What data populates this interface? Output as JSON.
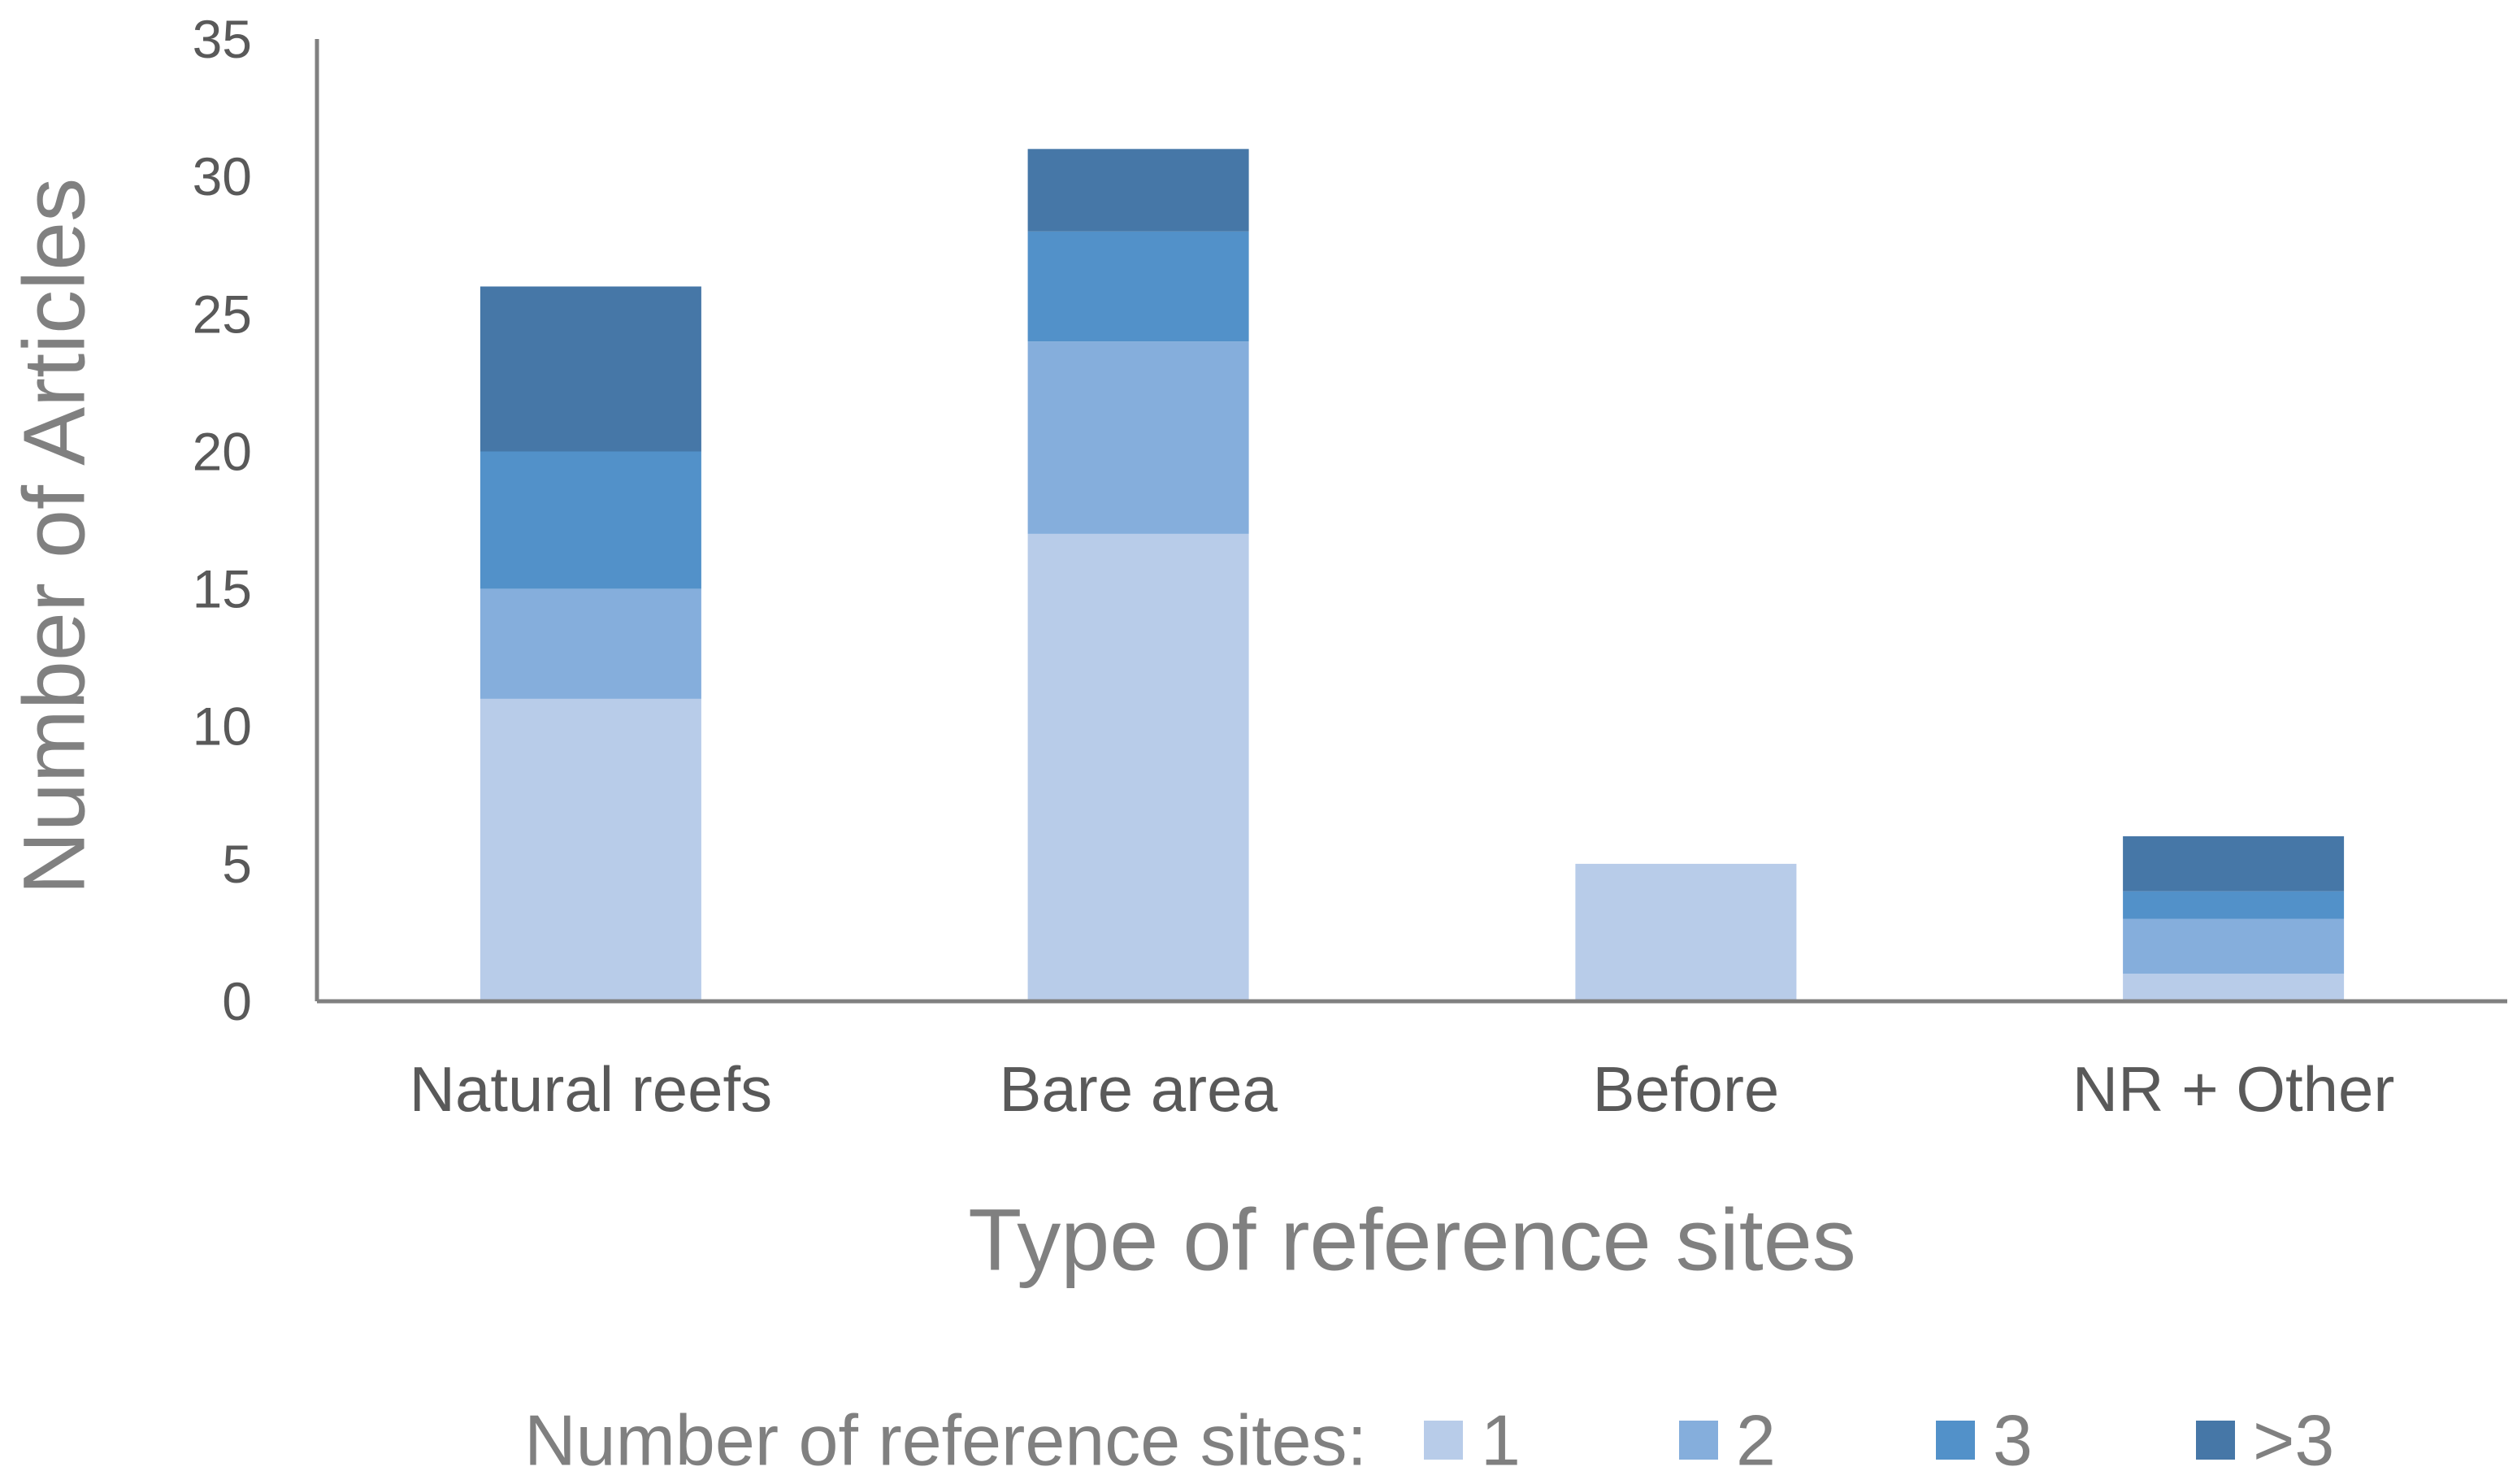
{
  "chart_data": {
    "type": "bar",
    "stacked": true,
    "title": "",
    "xlabel": "Type of reference sites",
    "ylabel": "Number of Articles",
    "ylim": [
      0,
      35
    ],
    "yticks": [
      0,
      5,
      10,
      15,
      20,
      25,
      30,
      35
    ],
    "grid": false,
    "legend_position": "bottom",
    "legend_title": "Number of reference sites:",
    "categories": [
      "Natural reefs",
      "Bare area",
      "Before",
      "NR + Other"
    ],
    "series": [
      {
        "name": "1",
        "color": "#b8cce9",
        "values": [
          11,
          17,
          5,
          1
        ]
      },
      {
        "name": "2",
        "color": "#85aedc",
        "values": [
          4,
          7,
          0,
          2
        ]
      },
      {
        "name": "3",
        "color": "#5291c9",
        "values": [
          5,
          4,
          0,
          1
        ]
      },
      {
        "name": ">3",
        "color": "#4677a7",
        "values": [
          6,
          3,
          0,
          2
        ]
      }
    ],
    "axis_color": "#808080",
    "text_color": "#595959",
    "label_color": "#808080"
  }
}
